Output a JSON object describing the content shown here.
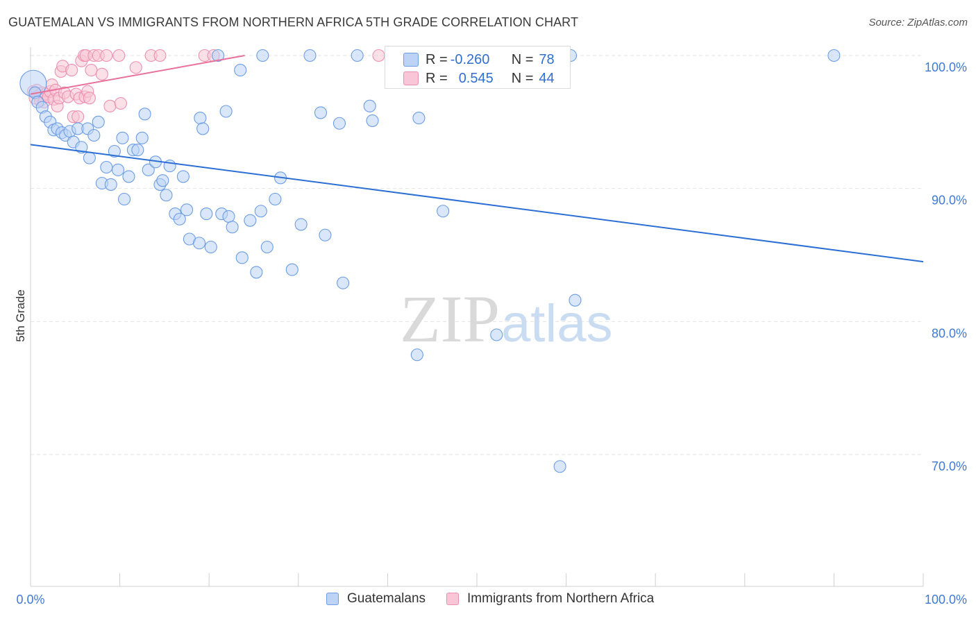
{
  "title": "GUATEMALAN VS IMMIGRANTS FROM NORTHERN AFRICA 5TH GRADE CORRELATION CHART",
  "source": "Source: ZipAtlas.com",
  "watermark": {
    "zip": "ZIP",
    "atlas": "atlas"
  },
  "legend": {
    "r_label": "R =",
    "n_label": "N =",
    "rows": [
      {
        "series": "Guatemalans",
        "r": "-0.260",
        "n": "78"
      },
      {
        "series": "Immigrants from Northern Africa",
        "r": "0.545",
        "n": "44"
      }
    ]
  },
  "chart_data": {
    "type": "scatter",
    "title": "GUATEMALAN VS IMMIGRANTS FROM NORTHERN AFRICA 5TH GRADE CORRELATION CHART",
    "xlabel": "",
    "ylabel": "5th Grade",
    "xlim": [
      0,
      100
    ],
    "ylim": [
      60,
      102
    ],
    "x_tick_labels": [
      "0.0%",
      "100.0%"
    ],
    "y_ticks": [
      {
        "value": 100,
        "label": "100.0%"
      },
      {
        "value": 90,
        "label": "90.0%"
      },
      {
        "value": 80,
        "label": "80.0%"
      },
      {
        "value": 70,
        "label": "70.0%"
      }
    ],
    "grid": true,
    "colors": {
      "guatemalans": "#6b9de6",
      "guatemalans_fill": "#bcd3f5",
      "guatemalans_line": "#2c6fd4",
      "nafrica": "#ee8fb0",
      "nafrica_fill": "#f8c6d6",
      "nafrica_line": "#e8709a",
      "axis_label": "#3f7ad6"
    },
    "series": [
      {
        "name": "Guatemalans",
        "r": -0.26,
        "n": 78,
        "trend": {
          "x1": 0,
          "y1": 93.3,
          "x2": 100,
          "y2": 84.5
        },
        "points": [
          {
            "x": 0.3,
            "y": 97.9,
            "big": true
          },
          {
            "x": 0.5,
            "y": 97.2
          },
          {
            "x": 0.8,
            "y": 96.5
          },
          {
            "x": 1.3,
            "y": 96.1
          },
          {
            "x": 1.7,
            "y": 95.4
          },
          {
            "x": 2.2,
            "y": 95.0
          },
          {
            "x": 2.6,
            "y": 94.4
          },
          {
            "x": 3.0,
            "y": 94.5
          },
          {
            "x": 3.5,
            "y": 94.2
          },
          {
            "x": 3.9,
            "y": 94.0
          },
          {
            "x": 4.4,
            "y": 94.3
          },
          {
            "x": 4.8,
            "y": 93.5
          },
          {
            "x": 5.3,
            "y": 94.5
          },
          {
            "x": 5.7,
            "y": 93.1
          },
          {
            "x": 6.4,
            "y": 94.5
          },
          {
            "x": 6.6,
            "y": 92.3
          },
          {
            "x": 7.1,
            "y": 94.0
          },
          {
            "x": 7.6,
            "y": 95.0
          },
          {
            "x": 8.0,
            "y": 90.4
          },
          {
            "x": 8.5,
            "y": 91.6
          },
          {
            "x": 9.0,
            "y": 90.3
          },
          {
            "x": 9.4,
            "y": 92.8
          },
          {
            "x": 9.8,
            "y": 91.4
          },
          {
            "x": 10.3,
            "y": 93.8
          },
          {
            "x": 10.5,
            "y": 89.2
          },
          {
            "x": 11.0,
            "y": 90.9
          },
          {
            "x": 11.5,
            "y": 92.9
          },
          {
            "x": 12.0,
            "y": 92.9
          },
          {
            "x": 12.5,
            "y": 93.8
          },
          {
            "x": 12.8,
            "y": 95.6
          },
          {
            "x": 13.2,
            "y": 91.4
          },
          {
            "x": 14.0,
            "y": 92.0
          },
          {
            "x": 14.5,
            "y": 90.3
          },
          {
            "x": 14.8,
            "y": 90.6
          },
          {
            "x": 15.2,
            "y": 89.5
          },
          {
            "x": 15.6,
            "y": 91.7
          },
          {
            "x": 16.2,
            "y": 88.1
          },
          {
            "x": 16.7,
            "y": 87.7
          },
          {
            "x": 17.1,
            "y": 90.9
          },
          {
            "x": 17.5,
            "y": 88.4
          },
          {
            "x": 17.8,
            "y": 86.2
          },
          {
            "x": 18.9,
            "y": 85.9
          },
          {
            "x": 19.0,
            "y": 95.3
          },
          {
            "x": 19.3,
            "y": 94.5
          },
          {
            "x": 19.7,
            "y": 88.1
          },
          {
            "x": 20.2,
            "y": 85.6
          },
          {
            "x": 21.0,
            "y": 100.0
          },
          {
            "x": 21.4,
            "y": 88.1
          },
          {
            "x": 21.9,
            "y": 95.8
          },
          {
            "x": 22.2,
            "y": 87.9
          },
          {
            "x": 22.6,
            "y": 87.1
          },
          {
            "x": 23.5,
            "y": 98.9
          },
          {
            "x": 23.7,
            "y": 84.8
          },
          {
            "x": 24.6,
            "y": 87.6
          },
          {
            "x": 25.3,
            "y": 83.7
          },
          {
            "x": 25.8,
            "y": 88.3
          },
          {
            "x": 26.0,
            "y": 100.0
          },
          {
            "x": 26.5,
            "y": 85.6
          },
          {
            "x": 27.4,
            "y": 89.2
          },
          {
            "x": 28.0,
            "y": 90.8
          },
          {
            "x": 29.3,
            "y": 83.9
          },
          {
            "x": 30.3,
            "y": 87.3
          },
          {
            "x": 31.3,
            "y": 100.0
          },
          {
            "x": 32.5,
            "y": 95.7
          },
          {
            "x": 33.0,
            "y": 86.5
          },
          {
            "x": 34.6,
            "y": 94.9
          },
          {
            "x": 35.0,
            "y": 82.9
          },
          {
            "x": 36.6,
            "y": 100.0
          },
          {
            "x": 38.0,
            "y": 96.2
          },
          {
            "x": 38.3,
            "y": 95.1
          },
          {
            "x": 43.3,
            "y": 77.5
          },
          {
            "x": 43.5,
            "y": 95.3
          },
          {
            "x": 46.2,
            "y": 88.3
          },
          {
            "x": 52.2,
            "y": 79.0
          },
          {
            "x": 59.3,
            "y": 69.1
          },
          {
            "x": 60.5,
            "y": 100.0
          },
          {
            "x": 61.0,
            "y": 81.6
          },
          {
            "x": 90.0,
            "y": 100.0
          }
        ]
      },
      {
        "name": "Immigrants from Northern Africa",
        "r": 0.545,
        "n": 44,
        "trend": {
          "x1": 0,
          "y1": 97.1,
          "x2": 24,
          "y2": 100.0
        },
        "points": [
          {
            "x": 0.3,
            "y": 97.3
          },
          {
            "x": 0.5,
            "y": 96.8
          },
          {
            "x": 0.7,
            "y": 97.4
          },
          {
            "x": 0.9,
            "y": 97.0
          },
          {
            "x": 1.1,
            "y": 96.6
          },
          {
            "x": 1.3,
            "y": 97.2
          },
          {
            "x": 1.5,
            "y": 96.5
          },
          {
            "x": 1.7,
            "y": 97.1
          },
          {
            "x": 2.0,
            "y": 96.9
          },
          {
            "x": 2.2,
            "y": 97.3
          },
          {
            "x": 2.4,
            "y": 97.8
          },
          {
            "x": 2.6,
            "y": 96.7
          },
          {
            "x": 2.8,
            "y": 97.4
          },
          {
            "x": 3.0,
            "y": 96.2
          },
          {
            "x": 3.2,
            "y": 96.8
          },
          {
            "x": 3.4,
            "y": 98.8
          },
          {
            "x": 3.6,
            "y": 99.2
          },
          {
            "x": 3.8,
            "y": 97.2
          },
          {
            "x": 4.2,
            "y": 96.9
          },
          {
            "x": 4.6,
            "y": 98.9
          },
          {
            "x": 4.8,
            "y": 95.4
          },
          {
            "x": 5.1,
            "y": 97.1
          },
          {
            "x": 5.3,
            "y": 95.4
          },
          {
            "x": 5.5,
            "y": 96.8
          },
          {
            "x": 5.7,
            "y": 99.6
          },
          {
            "x": 6.0,
            "y": 100.0
          },
          {
            "x": 6.1,
            "y": 96.9
          },
          {
            "x": 6.2,
            "y": 100.0
          },
          {
            "x": 6.4,
            "y": 97.3
          },
          {
            "x": 6.6,
            "y": 96.8
          },
          {
            "x": 6.8,
            "y": 98.9
          },
          {
            "x": 7.1,
            "y": 100.0
          },
          {
            "x": 7.6,
            "y": 100.0
          },
          {
            "x": 8.0,
            "y": 98.6
          },
          {
            "x": 8.5,
            "y": 100.0
          },
          {
            "x": 8.9,
            "y": 96.2
          },
          {
            "x": 9.9,
            "y": 100.0
          },
          {
            "x": 10.1,
            "y": 96.4
          },
          {
            "x": 11.8,
            "y": 99.1
          },
          {
            "x": 13.5,
            "y": 100.0
          },
          {
            "x": 14.5,
            "y": 100.0
          },
          {
            "x": 19.5,
            "y": 100.0
          },
          {
            "x": 20.5,
            "y": 100.0
          },
          {
            "x": 39.0,
            "y": 100.0
          }
        ]
      }
    ]
  }
}
